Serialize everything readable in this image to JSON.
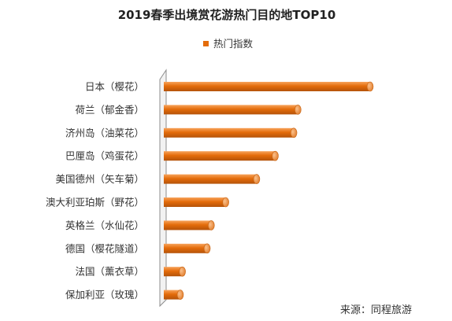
{
  "chart_data": {
    "type": "bar",
    "orientation": "horizontal",
    "title": "2019春季出境赏花游热门目的地TOP10",
    "series": [
      {
        "name": "热门指数",
        "color": "#E46C0A",
        "values": [
          100,
          65,
          63,
          54,
          45,
          30,
          23,
          21,
          9,
          8
        ]
      }
    ],
    "categories": [
      "日本（樱花）",
      "荷兰（郁金香）",
      "济州岛（油菜花）",
      "巴厘岛（鸡蛋花）",
      "美国德州（矢车菊）",
      "澳大利亚珀斯（野花）",
      "英格兰（水仙花）",
      "德国（樱花隧道）",
      "法国（薰衣草）",
      "保加利亚（玫瑰）"
    ],
    "xlim": [
      0,
      100
    ],
    "grid": false,
    "legend_position": "top-center",
    "source": "来源：同程旅游"
  }
}
